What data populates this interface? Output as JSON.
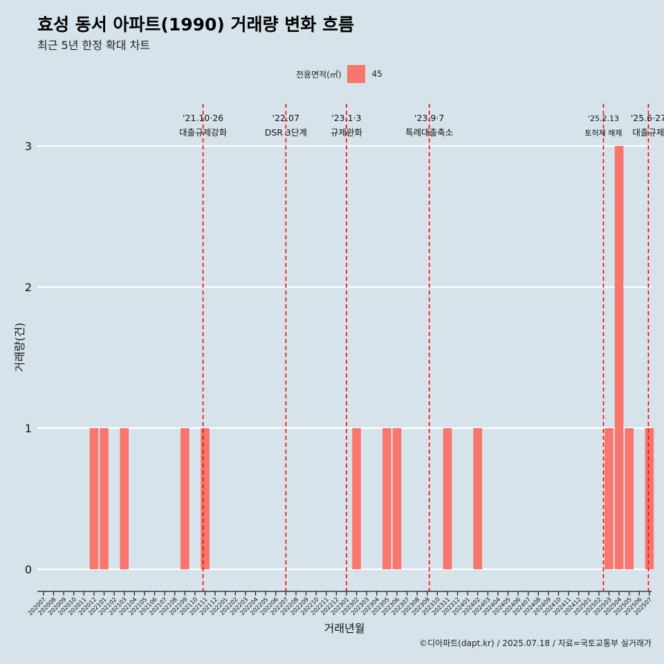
{
  "title": "효성 동서 아파트(1990) 거래량 변화 흐름",
  "subtitle": "최근 5년 한정 확대 차트",
  "caption": "©디아파트(dapt.kr) / 2025.07.18 / 자료=국토교통부 실거래가",
  "legend": {
    "title": "전용면적(㎡)",
    "label": "45",
    "color": "#f8766d"
  },
  "chart_data": {
    "type": "bar",
    "xlabel": "거래년월",
    "ylabel": "거래량(건)",
    "ylim": [
      0,
      3
    ],
    "yticks": [
      0,
      1,
      2,
      3
    ],
    "grid": true,
    "legend_position": "top",
    "categories": [
      "202007",
      "202008",
      "202009",
      "202010",
      "202011",
      "202012",
      "202101",
      "202102",
      "202103",
      "202104",
      "202105",
      "202106",
      "202107",
      "202108",
      "202109",
      "202110",
      "202111",
      "202112",
      "202201",
      "202202",
      "202203",
      "202204",
      "202205",
      "202206",
      "202207",
      "202208",
      "202209",
      "202210",
      "202211",
      "202212",
      "202301",
      "202302",
      "202303",
      "202304",
      "202305",
      "202306",
      "202307",
      "202308",
      "202309",
      "202310",
      "202311",
      "202312",
      "202401",
      "202402",
      "202403",
      "202404",
      "202405",
      "202406",
      "202407",
      "202408",
      "202409",
      "202410",
      "202411",
      "202412",
      "202501",
      "202502",
      "202503",
      "202504",
      "202505",
      "202506",
      "202507"
    ],
    "series": [
      {
        "name": "45",
        "color": "#f8766d",
        "values": [
          0,
          0,
          0,
          0,
          0,
          1,
          1,
          0,
          1,
          0,
          0,
          0,
          0,
          0,
          1,
          0,
          1,
          0,
          0,
          0,
          0,
          0,
          0,
          0,
          0,
          0,
          0,
          0,
          0,
          0,
          0,
          1,
          0,
          0,
          1,
          1,
          0,
          0,
          0,
          0,
          1,
          0,
          0,
          1,
          0,
          0,
          0,
          0,
          0,
          0,
          0,
          0,
          0,
          0,
          0,
          0,
          1,
          3,
          1,
          0,
          1
        ]
      }
    ],
    "events": [
      {
        "x": "202110",
        "offset": 0.8,
        "date": "'21.10·26",
        "label": "대출규제강화",
        "small": false
      },
      {
        "x": "202207",
        "offset": 0,
        "date": "'22.07",
        "label": "DSR 3단계",
        "small": false
      },
      {
        "x": "202301",
        "offset": 0,
        "date": "'23.1·3",
        "label": "규제완화",
        "small": false
      },
      {
        "x": "202309",
        "offset": 0.2,
        "date": "'23.9·7",
        "label": "특례대출축소",
        "small": false
      },
      {
        "x": "202502",
        "offset": 0.45,
        "date": "'25.2.13",
        "label": "토허제 해제",
        "small": true
      },
      {
        "x": "202506",
        "offset": 0.9,
        "date": "'25.6·27",
        "label": "대출규제",
        "small": false
      }
    ]
  }
}
